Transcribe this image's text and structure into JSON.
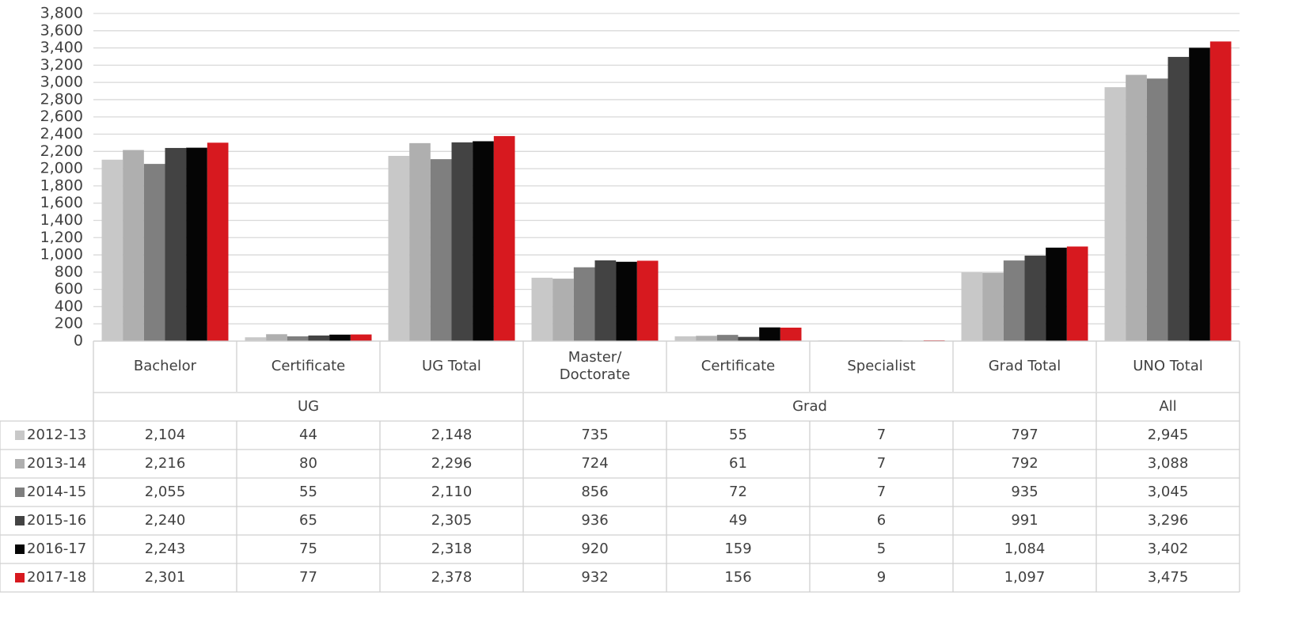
{
  "chart_data": {
    "type": "bar",
    "categories": [
      "Bachelor",
      "Certificate",
      "UG Total",
      "Master/\nDoctorate",
      "Certificate",
      "Specialist",
      "Grad Total",
      "UNO Total"
    ],
    "category_groups": [
      "UG",
      null,
      null,
      "Grad",
      null,
      null,
      null,
      "All"
    ],
    "series": [
      {
        "name": "2012-13",
        "color": "#c8c8c8",
        "values": [
          2104,
          44,
          2148,
          735,
          55,
          7,
          797,
          2945
        ],
        "value_labels": [
          "2,104",
          "44",
          "2,148",
          "735",
          "55",
          "7",
          "797",
          "2,945"
        ]
      },
      {
        "name": "2013-14",
        "color": "#afafaf",
        "values": [
          2216,
          80,
          2296,
          724,
          61,
          7,
          792,
          3088
        ],
        "value_labels": [
          "2,216",
          "80",
          "2,296",
          "724",
          "61",
          "7",
          "792",
          "3,088"
        ]
      },
      {
        "name": "2014-15",
        "color": "#7f7f7f",
        "values": [
          2055,
          55,
          2110,
          856,
          72,
          7,
          935,
          3045
        ],
        "value_labels": [
          "2,055",
          "55",
          "2,110",
          "856",
          "72",
          "7",
          "935",
          "3,045"
        ]
      },
      {
        "name": "2015-16",
        "color": "#434343",
        "values": [
          2240,
          65,
          2305,
          936,
          49,
          6,
          991,
          3296
        ],
        "value_labels": [
          "2,240",
          "65",
          "2,305",
          "936",
          "49",
          "6",
          "991",
          "3,296"
        ]
      },
      {
        "name": "2016-17",
        "color": "#050505",
        "values": [
          2243,
          75,
          2318,
          920,
          159,
          5,
          1084,
          3402
        ],
        "value_labels": [
          "2,243",
          "75",
          "2,318",
          "920",
          "159",
          "5",
          "1,084",
          "3,402"
        ]
      },
      {
        "name": "2017-18",
        "color": "#d7191f",
        "values": [
          2301,
          77,
          2378,
          932,
          156,
          9,
          1097,
          3475
        ],
        "value_labels": [
          "2,301",
          "77",
          "2,378",
          "932",
          "156",
          "9",
          "1,097",
          "3,475"
        ]
      }
    ],
    "ylim": [
      0,
      3800
    ],
    "yticks": [
      0,
      200,
      400,
      600,
      800,
      {
        "value": 1000,
        "label": "1,000"
      },
      {
        "value": 1200,
        "label": "1,200"
      },
      {
        "value": 1400,
        "label": "1,400"
      },
      {
        "value": 1600,
        "label": "1,600"
      },
      {
        "value": 1800,
        "label": "1,800"
      },
      {
        "value": 2000,
        "label": "2,000"
      },
      {
        "value": 2200,
        "label": "2,200"
      },
      {
        "value": 2400,
        "label": "2,400"
      },
      {
        "value": 2600,
        "label": "2,600"
      },
      {
        "value": 2800,
        "label": "2,800"
      },
      {
        "value": 3000,
        "label": "3,000"
      },
      {
        "value": 3200,
        "label": "3,200"
      },
      {
        "value": 3400,
        "label": "3,400"
      },
      {
        "value": 3600,
        "label": "3,600"
      },
      {
        "value": 3800,
        "label": "3,800"
      }
    ],
    "grid": true
  }
}
